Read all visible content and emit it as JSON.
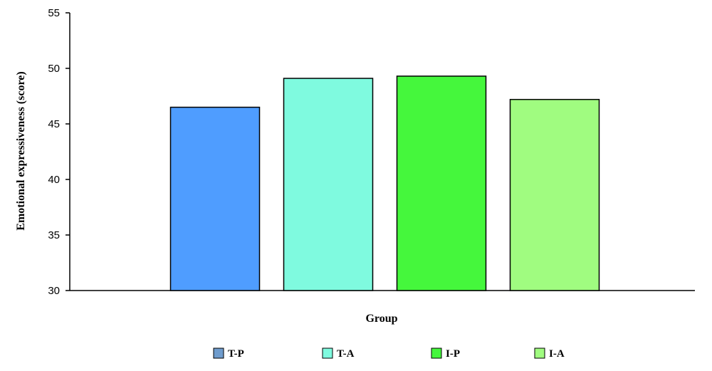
{
  "chart_data": {
    "type": "bar",
    "categories": [
      "T-P",
      "T-A",
      "I-P",
      "I-A"
    ],
    "values": [
      46.5,
      49.1,
      49.3,
      47.2
    ],
    "colors": [
      "#4f9dff",
      "#7ffadf",
      "#45f73c",
      "#a0fc80"
    ],
    "legend_swatch_colors": [
      "#6f9ccd",
      "#7ffadf",
      "#45f73c",
      "#a0fc80"
    ],
    "xlabel": "Group",
    "ylabel": "Emotional expressiveness (score)",
    "ylim": [
      30,
      55
    ],
    "yticks": [
      30,
      35,
      40,
      45,
      50,
      55
    ],
    "grid": false,
    "legend_position": "bottom"
  }
}
